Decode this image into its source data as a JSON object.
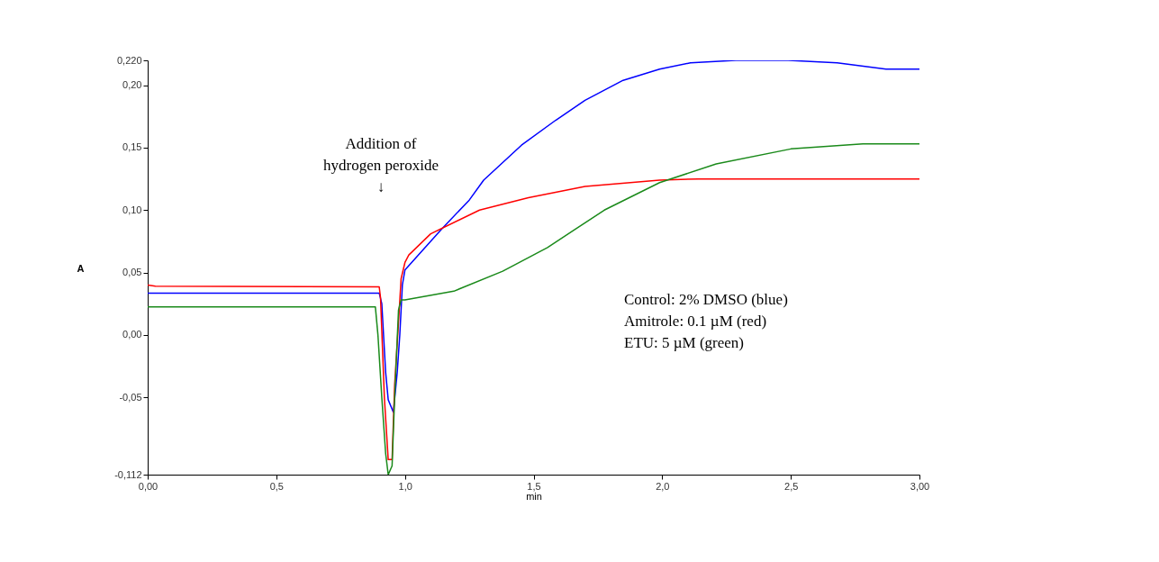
{
  "chart_data": {
    "type": "line",
    "xlabel": "min",
    "ylabel": "A",
    "xlim": [
      0,
      3
    ],
    "xticks": [
      {
        "value": 0,
        "label": "0,00"
      },
      {
        "value": 0.5,
        "label": "0,5"
      },
      {
        "value": 1,
        "label": "1,0"
      },
      {
        "value": 1.5,
        "label": "1,5"
      },
      {
        "value": 2,
        "label": "2,0"
      },
      {
        "value": 2.5,
        "label": "2,5"
      },
      {
        "value": 3,
        "label": "3,00"
      }
    ],
    "ylim": [
      -0.112,
      0.22
    ],
    "yticks": [
      {
        "value": -0.112,
        "label": "-0,112"
      },
      {
        "value": -0.05,
        "label": "-0,05"
      },
      {
        "value": 0,
        "label": "0,00"
      },
      {
        "value": 0.05,
        "label": "0,05"
      },
      {
        "value": 0.1,
        "label": "0,10"
      },
      {
        "value": 0.15,
        "label": "0,15"
      },
      {
        "value": 0.2,
        "label": "0,20"
      },
      {
        "value": 0.22,
        "label": "0,220"
      }
    ],
    "grid": false,
    "legend": false,
    "marker": "none",
    "line_style": "solid",
    "series": [
      {
        "color": "#0000ff",
        "x": [
          0,
          0.9,
          0.91,
          0.925,
          0.935,
          0.955,
          0.97,
          0.98,
          0.99,
          1.0,
          1.148,
          1.25,
          1.306,
          1.453,
          1.586,
          1.7,
          1.848,
          1.99,
          2.11,
          2.286,
          2.49,
          2.68,
          2.87,
          3.0
        ],
        "values": [
          0.0335,
          0.0335,
          0.025,
          -0.03,
          -0.052,
          -0.062,
          -0.03,
          0.0,
          0.04,
          0.052,
          0.086,
          0.108,
          0.124,
          0.152,
          0.172,
          0.188,
          0.204,
          0.213,
          0.218,
          0.22,
          0.22,
          0.218,
          0.213,
          0.213
        ]
      },
      {
        "color": "#ff0000",
        "x": [
          0,
          0.03,
          0.9,
          0.905,
          0.92,
          0.935,
          0.95,
          0.96,
          0.975,
          0.985,
          1.0,
          1.015,
          1.1,
          1.29,
          1.48,
          1.7,
          1.99,
          2.14,
          3.0
        ],
        "values": [
          0.04,
          0.039,
          0.0385,
          0.03,
          -0.05,
          -0.1,
          -0.1,
          -0.04,
          0.01,
          0.045,
          0.058,
          0.064,
          0.081,
          0.1,
          0.11,
          0.119,
          0.124,
          0.125,
          0.125
        ]
      },
      {
        "color": "#1a8a1a",
        "x": [
          0,
          0.885,
          0.895,
          0.91,
          0.925,
          0.935,
          0.95,
          0.96,
          0.975,
          0.985,
          1.0,
          1.19,
          1.38,
          1.554,
          1.775,
          1.99,
          2.21,
          2.5,
          2.78,
          3.0
        ],
        "values": [
          0.0225,
          0.0225,
          0.0,
          -0.05,
          -0.095,
          -0.112,
          -0.105,
          -0.05,
          0.02,
          0.028,
          0.028,
          0.035,
          0.051,
          0.07,
          0.1,
          0.122,
          0.137,
          0.149,
          0.153,
          0.153
        ]
      }
    ],
    "annotations": [
      "Addition of\nhydrogen peroxide\n↓",
      "Control:  2% DMSO (blue)",
      "Amitrole:  0.1 µM (red)",
      "ETU:  5 µM (green)"
    ]
  }
}
